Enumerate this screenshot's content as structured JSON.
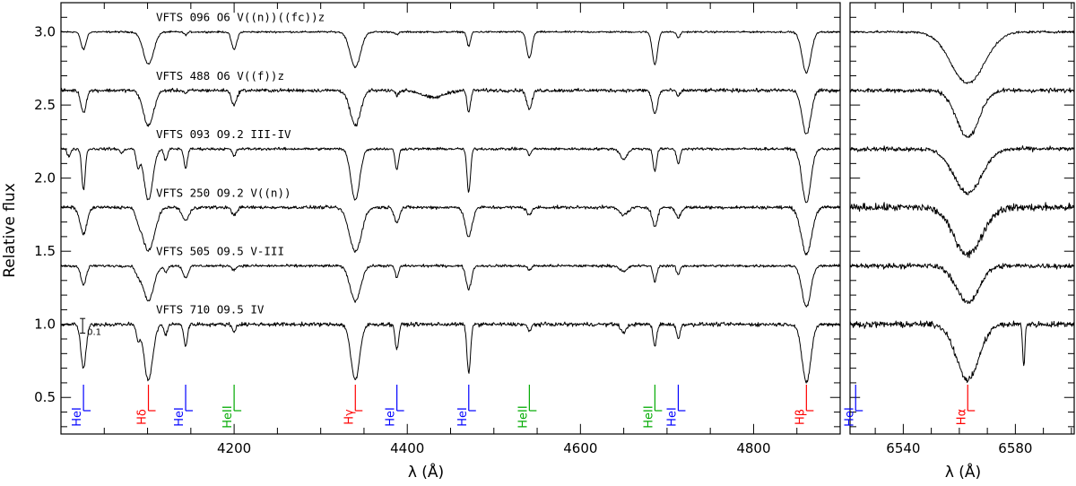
{
  "colors": {
    "HeI": "#0000ff",
    "HeII": "#00aa00",
    "H": "#ff0000",
    "spectrum": "#000000"
  },
  "ylabel": "Relative flux",
  "xlabel": "λ (Å)",
  "scale_bar_label": "0.1",
  "chart_data": [
    {
      "type": "line",
      "panel": "blue",
      "xlabel": "λ (Å)",
      "ylabel": "Relative flux",
      "xlim": [
        4000,
        4900
      ],
      "ylim": [
        0.25,
        3.2
      ],
      "xticks": [
        4200,
        4400,
        4600,
        4800
      ],
      "yticks": [
        0.5,
        1.0,
        1.5,
        2.0,
        2.5,
        3.0
      ],
      "ytick_labels": [
        "0.5",
        "1.0",
        "1.5",
        "2.0",
        "2.5",
        "3.0"
      ],
      "series": [
        {
          "name": "VFTS 096  O6 V((n))((fc))z",
          "offset": 3.0,
          "noise": 0.006,
          "lines": [
            [
              4026,
              0.12,
              3
            ],
            [
              4101,
              0.22,
              6
            ],
            [
              4144,
              0.02,
              2
            ],
            [
              4200,
              0.12,
              3
            ],
            [
              4340,
              0.24,
              6
            ],
            [
              4388,
              0.02,
              2
            ],
            [
              4471,
              0.1,
              2
            ],
            [
              4541,
              0.18,
              3
            ],
            [
              4686,
              0.22,
              3
            ],
            [
              4713,
              0.04,
              2
            ],
            [
              4861,
              0.28,
              5
            ]
          ]
        },
        {
          "name": "VFTS 488  O6 V((f))z",
          "offset": 2.6,
          "noise": 0.012,
          "lines": [
            [
              4026,
              0.15,
              3
            ],
            [
              4101,
              0.24,
              6
            ],
            [
              4144,
              0.02,
              2
            ],
            [
              4200,
              0.1,
              3
            ],
            [
              4340,
              0.24,
              6
            ],
            [
              4388,
              0.03,
              2
            ],
            [
              4430,
              0.05,
              12
            ],
            [
              4471,
              0.15,
              2
            ],
            [
              4541,
              0.13,
              3
            ],
            [
              4686,
              0.16,
              3
            ],
            [
              4713,
              0.04,
              2
            ],
            [
              4861,
              0.3,
              5
            ]
          ]
        },
        {
          "name": "VFTS 093  O9.2 III-IV",
          "offset": 2.2,
          "noise": 0.009,
          "lines": [
            [
              4009,
              0.05,
              2
            ],
            [
              4026,
              0.28,
              2
            ],
            [
              4070,
              0.03,
              2
            ],
            [
              4089,
              0.12,
              2
            ],
            [
              4101,
              0.35,
              5
            ],
            [
              4121,
              0.08,
              2
            ],
            [
              4144,
              0.13,
              2
            ],
            [
              4200,
              0.05,
              2
            ],
            [
              4340,
              0.35,
              5
            ],
            [
              4388,
              0.14,
              2
            ],
            [
              4471,
              0.3,
              2
            ],
            [
              4541,
              0.04,
              2
            ],
            [
              4650,
              0.07,
              4
            ],
            [
              4686,
              0.15,
              2
            ],
            [
              4713,
              0.1,
              2
            ],
            [
              4861,
              0.37,
              5
            ]
          ]
        },
        {
          "name": "VFTS 250  O9.2 V((n))",
          "offset": 1.8,
          "noise": 0.011,
          "lines": [
            [
              4026,
              0.18,
              4
            ],
            [
              4089,
              0.05,
              3
            ],
            [
              4101,
              0.3,
              7
            ],
            [
              4144,
              0.09,
              4
            ],
            [
              4200,
              0.05,
              3
            ],
            [
              4340,
              0.3,
              7
            ],
            [
              4388,
              0.1,
              3
            ],
            [
              4471,
              0.2,
              4
            ],
            [
              4541,
              0.05,
              3
            ],
            [
              4650,
              0.05,
              5
            ],
            [
              4686,
              0.13,
              3
            ],
            [
              4713,
              0.07,
              3
            ],
            [
              4861,
              0.32,
              6
            ]
          ]
        },
        {
          "name": "VFTS 505  O9.5 V-III",
          "offset": 1.4,
          "noise": 0.009,
          "lines": [
            [
              4026,
              0.13,
              3
            ],
            [
              4089,
              0.05,
              3
            ],
            [
              4101,
              0.24,
              6
            ],
            [
              4121,
              0.04,
              2
            ],
            [
              4144,
              0.08,
              3
            ],
            [
              4200,
              0.03,
              2
            ],
            [
              4340,
              0.24,
              6
            ],
            [
              4388,
              0.08,
              2
            ],
            [
              4471,
              0.16,
              3
            ],
            [
              4541,
              0.03,
              2
            ],
            [
              4650,
              0.04,
              4
            ],
            [
              4686,
              0.11,
              2
            ],
            [
              4713,
              0.06,
              2
            ],
            [
              4861,
              0.28,
              5
            ]
          ]
        },
        {
          "name": "VFTS 710  O9.5 IV",
          "offset": 1.0,
          "noise": 0.013,
          "lines": [
            [
              4026,
              0.3,
              3
            ],
            [
              4089,
              0.1,
              2
            ],
            [
              4101,
              0.38,
              5
            ],
            [
              4121,
              0.07,
              2
            ],
            [
              4144,
              0.15,
              2
            ],
            [
              4200,
              0.05,
              2
            ],
            [
              4340,
              0.38,
              5
            ],
            [
              4388,
              0.17,
              2
            ],
            [
              4471,
              0.34,
              2
            ],
            [
              4541,
              0.05,
              2
            ],
            [
              4650,
              0.06,
              3
            ],
            [
              4686,
              0.15,
              2
            ],
            [
              4713,
              0.1,
              2
            ],
            [
              4861,
              0.4,
              5
            ]
          ]
        }
      ],
      "line_ids": [
        {
          "label": "HeI",
          "wavelength": 4026,
          "species": "HeI"
        },
        {
          "label": "Hδ",
          "wavelength": 4101,
          "species": "H"
        },
        {
          "label": "HeI",
          "wavelength": 4144,
          "species": "HeI"
        },
        {
          "label": "HeII",
          "wavelength": 4200,
          "species": "HeII"
        },
        {
          "label": "Hγ",
          "wavelength": 4340,
          "species": "H"
        },
        {
          "label": "HeI",
          "wavelength": 4388,
          "species": "HeI"
        },
        {
          "label": "HeI",
          "wavelength": 4471,
          "species": "HeI"
        },
        {
          "label": "HeII",
          "wavelength": 4541,
          "species": "HeII"
        },
        {
          "label": "HeII",
          "wavelength": 4686,
          "species": "HeII"
        },
        {
          "label": "HeI",
          "wavelength": 4713,
          "species": "HeI"
        },
        {
          "label": "Hβ",
          "wavelength": 4861,
          "species": "H"
        }
      ],
      "scale_bar": {
        "x": 4025,
        "y_center": 0.99,
        "height": 0.1,
        "label": "0.1"
      }
    },
    {
      "type": "line",
      "panel": "red",
      "xlabel": "λ (Å)",
      "xlim": [
        6521,
        6601
      ],
      "ylim": [
        0.25,
        3.2
      ],
      "xticks": [
        6540,
        6580
      ],
      "series": [
        {
          "name": "VFTS 096",
          "offset": 3.0,
          "noise": 0.008,
          "lines": [
            [
              6563,
              0.35,
              6
            ]
          ]
        },
        {
          "name": "VFTS 488",
          "offset": 2.6,
          "noise": 0.015,
          "lines": [
            [
              6563,
              0.32,
              4
            ]
          ]
        },
        {
          "name": "VFTS 093",
          "offset": 2.2,
          "noise": 0.015,
          "lines": [
            [
              6563,
              0.3,
              5
            ]
          ]
        },
        {
          "name": "VFTS 250",
          "offset": 1.8,
          "noise": 0.025,
          "lines": [
            [
              6563,
              0.32,
              5
            ]
          ]
        },
        {
          "name": "VFTS 505",
          "offset": 1.4,
          "noise": 0.018,
          "lines": [
            [
              6563,
              0.25,
              4
            ]
          ]
        },
        {
          "name": "VFTS 710",
          "offset": 1.0,
          "noise": 0.02,
          "lines": [
            [
              6563,
              0.38,
              4
            ],
            [
              6583,
              0.28,
              0.4
            ]
          ]
        }
      ],
      "line_ids": [
        {
          "label": "HeI",
          "wavelength": 6523,
          "species": "HeI"
        },
        {
          "label": "Hα",
          "wavelength": 6563,
          "species": "H"
        }
      ]
    }
  ]
}
